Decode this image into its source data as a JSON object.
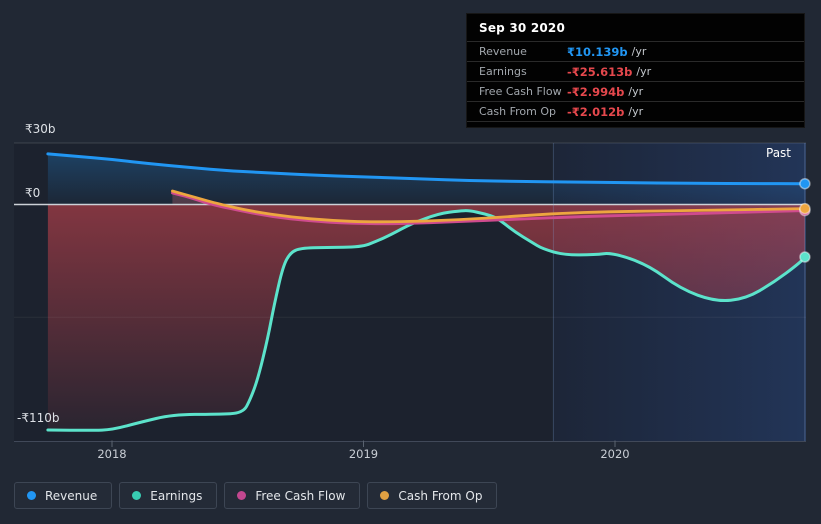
{
  "tooltip": {
    "date": "Sep 30 2020",
    "rows": [
      {
        "label": "Revenue",
        "value": "₹10.139b",
        "suffix": "/yr",
        "color": "#2196f3"
      },
      {
        "label": "Earnings",
        "value": "-₹25.613b",
        "suffix": "/yr",
        "color": "#e5484d"
      },
      {
        "label": "Free Cash Flow",
        "value": "-₹2.994b",
        "suffix": "/yr",
        "color": "#e5484d"
      },
      {
        "label": "Cash From Op",
        "value": "-₹2.012b",
        "suffix": "/yr",
        "color": "#e5484d"
      }
    ]
  },
  "axis": {
    "y_labels": [
      {
        "text": "₹30b",
        "value": 30
      },
      {
        "text": "₹0",
        "value": 0
      },
      {
        "text": "-₹110b",
        "value": -110
      }
    ],
    "x_labels": [
      {
        "text": "2018",
        "year": 2018
      },
      {
        "text": "2019",
        "year": 2019
      },
      {
        "text": "2020",
        "year": 2020
      }
    ],
    "past_label": "Past"
  },
  "legend": [
    {
      "label": "Revenue",
      "color": "#2196f3"
    },
    {
      "label": "Earnings",
      "color": "#38cdb3"
    },
    {
      "label": "Free Cash Flow",
      "color": "#c2478f"
    },
    {
      "label": "Cash From Op",
      "color": "#dfa042"
    }
  ],
  "chart_data": {
    "type": "area",
    "x_unit": "year",
    "y_unit": "₹ billions /yr",
    "x_range": [
      2017.745,
      2020.755
    ],
    "y_range": [
      -116,
      31
    ],
    "gridline_values": [
      30,
      -55
    ],
    "zero_line": 0,
    "highlight_band": {
      "from": 2019.755,
      "to": 2020.755,
      "label": "Past"
    },
    "hover_point": {
      "date": "Sep 30 2020",
      "year": 2020.755
    },
    "series": [
      {
        "name": "Revenue",
        "color": "#2196f3",
        "points": [
          [
            2017.745,
            24.7
          ],
          [
            2017.85,
            23.6
          ],
          [
            2018.0,
            22.0
          ],
          [
            2018.15,
            19.9
          ],
          [
            2018.31,
            18.1
          ],
          [
            2018.47,
            16.4
          ],
          [
            2018.63,
            15.4
          ],
          [
            2018.79,
            14.4
          ],
          [
            2019.0,
            13.45
          ],
          [
            2019.23,
            12.5
          ],
          [
            2019.42,
            11.7
          ],
          [
            2019.62,
            11.25
          ],
          [
            2019.82,
            11.0
          ],
          [
            2020.0,
            10.75
          ],
          [
            2020.34,
            10.3
          ],
          [
            2020.55,
            10.2
          ],
          [
            2020.755,
            10.139
          ]
        ]
      },
      {
        "name": "Earnings",
        "color": "#5ce3cb",
        "points": [
          [
            2017.745,
            -110
          ],
          [
            2017.92,
            -110.2
          ],
          [
            2018.0,
            -109.9
          ],
          [
            2018.11,
            -106.3
          ],
          [
            2018.24,
            -102.5
          ],
          [
            2018.42,
            -102.3
          ],
          [
            2018.52,
            -101.8
          ],
          [
            2018.55,
            -95.0
          ],
          [
            2018.58,
            -85.0
          ],
          [
            2018.62,
            -65.0
          ],
          [
            2018.645,
            -48.9
          ],
          [
            2018.68,
            -30.0
          ],
          [
            2018.71,
            -23.3
          ],
          [
            2018.75,
            -21.3
          ],
          [
            2018.85,
            -20.9
          ],
          [
            2018.99,
            -20.8
          ],
          [
            2019.05,
            -18.0
          ],
          [
            2019.11,
            -14.7
          ],
          [
            2019.19,
            -9.3
          ],
          [
            2019.3,
            -4.4
          ],
          [
            2019.38,
            -3.1
          ],
          [
            2019.42,
            -2.9
          ],
          [
            2019.48,
            -4.5
          ],
          [
            2019.53,
            -6.4
          ],
          [
            2019.6,
            -13.2
          ],
          [
            2019.67,
            -18.5
          ],
          [
            2019.71,
            -21.5
          ],
          [
            2019.8,
            -24.7
          ],
          [
            2019.92,
            -24.5
          ],
          [
            2019.99,
            -23.5
          ],
          [
            2020.13,
            -29.3
          ],
          [
            2020.26,
            -41.1
          ],
          [
            2020.4,
            -47.4
          ],
          [
            2020.52,
            -46.0
          ],
          [
            2020.63,
            -38.1
          ],
          [
            2020.73,
            -28.9
          ],
          [
            2020.755,
            -25.613
          ]
        ]
      },
      {
        "name": "Free Cash Flow",
        "color": "#cf4b8e",
        "points": [
          [
            2018.24,
            5.6
          ],
          [
            2018.3,
            3.8
          ],
          [
            2018.39,
            0.2
          ],
          [
            2018.47,
            -2.0
          ],
          [
            2018.63,
            -5.9
          ],
          [
            2018.79,
            -8.1
          ],
          [
            2018.95,
            -9.3
          ],
          [
            2019.15,
            -9.4
          ],
          [
            2019.38,
            -8.3
          ],
          [
            2019.62,
            -7.1
          ],
          [
            2019.86,
            -5.9
          ],
          [
            2020.14,
            -5.0
          ],
          [
            2020.46,
            -3.9
          ],
          [
            2020.755,
            -2.994
          ]
        ]
      },
      {
        "name": "Cash From Op",
        "color": "#eda63f",
        "points": [
          [
            2018.24,
            6.6
          ],
          [
            2018.33,
            3.5
          ],
          [
            2018.41,
            0.7
          ],
          [
            2018.55,
            -3.2
          ],
          [
            2018.71,
            -6.1
          ],
          [
            2018.87,
            -7.8
          ],
          [
            2019.03,
            -8.6
          ],
          [
            2019.26,
            -8.1
          ],
          [
            2019.5,
            -6.6
          ],
          [
            2019.75,
            -4.4
          ],
          [
            2020.0,
            -3.4
          ],
          [
            2020.34,
            -2.9
          ],
          [
            2020.755,
            -2.012
          ]
        ]
      }
    ]
  }
}
